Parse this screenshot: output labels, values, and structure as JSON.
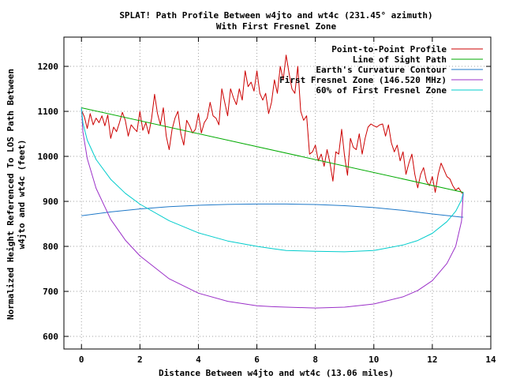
{
  "chart_data": {
    "type": "line",
    "title": "SPLAT! Path Profile Between w4jto and wt4c (231.45° azimuth)",
    "subtitle": "With First Fresnel Zone",
    "xlabel": "Distance Between w4jto and wt4c (13.06 miles)",
    "ylabel_line1": "Normalized Height Referenced To LOS Path Between",
    "ylabel_line2": "w4jto and wt4c (feet)",
    "xlim": [
      -0.6,
      14
    ],
    "ylim": [
      572,
      1265
    ],
    "xticks": [
      0,
      2,
      4,
      6,
      8,
      10,
      12,
      14
    ],
    "yticks": [
      600,
      700,
      800,
      900,
      1000,
      1100,
      1200
    ],
    "grid": true,
    "legend_position": "top-right",
    "series": [
      {
        "name": "Point-to-Point Profile",
        "color": "#cc0000",
        "x": [
          0,
          0.1,
          0.2,
          0.3,
          0.4,
          0.5,
          0.6,
          0.7,
          0.8,
          0.9,
          1.0,
          1.1,
          1.2,
          1.3,
          1.4,
          1.5,
          1.6,
          1.7,
          1.8,
          1.9,
          2.0,
          2.1,
          2.2,
          2.3,
          2.4,
          2.5,
          2.6,
          2.7,
          2.8,
          2.9,
          3.0,
          3.1,
          3.2,
          3.3,
          3.4,
          3.5,
          3.6,
          3.7,
          3.8,
          3.9,
          4.0,
          4.1,
          4.2,
          4.3,
          4.4,
          4.5,
          4.6,
          4.7,
          4.8,
          4.9,
          5.0,
          5.1,
          5.2,
          5.3,
          5.4,
          5.5,
          5.6,
          5.7,
          5.8,
          5.9,
          6.0,
          6.1,
          6.2,
          6.3,
          6.4,
          6.5,
          6.6,
          6.7,
          6.8,
          6.9,
          7.0,
          7.1,
          7.2,
          7.3,
          7.4,
          7.5,
          7.6,
          7.7,
          7.8,
          7.9,
          8.0,
          8.1,
          8.2,
          8.3,
          8.4,
          8.5,
          8.6,
          8.7,
          8.8,
          8.9,
          9.0,
          9.1,
          9.2,
          9.3,
          9.4,
          9.5,
          9.6,
          9.7,
          9.8,
          9.9,
          10.0,
          10.1,
          10.2,
          10.3,
          10.4,
          10.5,
          10.6,
          10.7,
          10.8,
          10.9,
          11.0,
          11.1,
          11.2,
          11.3,
          11.4,
          11.5,
          11.6,
          11.7,
          11.8,
          11.9,
          12.0,
          12.1,
          12.2,
          12.3,
          12.4,
          12.5,
          12.6,
          12.7,
          12.8,
          12.9,
          13.0,
          13.06
        ],
        "y": [
          1103,
          1088,
          1062,
          1095,
          1070,
          1085,
          1075,
          1090,
          1068,
          1092,
          1040,
          1065,
          1055,
          1075,
          1098,
          1080,
          1045,
          1070,
          1062,
          1055,
          1100,
          1058,
          1075,
          1050,
          1085,
          1138,
          1095,
          1070,
          1108,
          1045,
          1015,
          1060,
          1085,
          1100,
          1050,
          1025,
          1080,
          1068,
          1052,
          1060,
          1095,
          1052,
          1075,
          1085,
          1120,
          1090,
          1085,
          1070,
          1150,
          1120,
          1090,
          1150,
          1130,
          1115,
          1150,
          1125,
          1190,
          1155,
          1165,
          1145,
          1190,
          1140,
          1125,
          1140,
          1095,
          1120,
          1170,
          1140,
          1200,
          1170,
          1225,
          1185,
          1150,
          1140,
          1200,
          1100,
          1080,
          1090,
          1005,
          1010,
          1025,
          990,
          1005,
          978,
          1015,
          985,
          945,
          1010,
          1005,
          1060,
          1000,
          958,
          1040,
          1020,
          1015,
          1050,
          1005,
          1040,
          1065,
          1072,
          1068,
          1065,
          1070,
          1072,
          1045,
          1070,
          1030,
          1010,
          1025,
          990,
          1010,
          960,
          985,
          1005,
          960,
          930,
          960,
          975,
          945,
          935,
          955,
          920,
          960,
          985,
          970,
          955,
          950,
          935,
          925,
          930,
          920,
          915
        ]
      },
      {
        "name": "Line of Sight Path",
        "color": "#00aa00",
        "x": [
          0,
          13.06
        ],
        "y": [
          1108,
          920
        ]
      },
      {
        "name": "Earth's Curvature Contour",
        "color": "#1e78c8",
        "x": [
          0,
          1,
          2,
          3,
          4,
          5,
          6,
          6.53,
          7,
          8,
          9,
          10,
          11,
          12,
          13,
          13.06
        ],
        "y": [
          868,
          876.6,
          883.3,
          888.1,
          891.3,
          893.2,
          894.1,
          894.2,
          894.1,
          893.0,
          890.5,
          886.2,
          880.0,
          872.0,
          865.0,
          865
        ]
      },
      {
        "name": "First Fresnel Zone (146.520 MHz)",
        "color": "#9b30c8",
        "x": [
          0,
          0.05,
          0.2,
          0.5,
          1.0,
          1.5,
          2.0,
          3.0,
          4.0,
          5.0,
          6.0,
          6.53,
          7.0,
          8.0,
          9.0,
          10.0,
          11.0,
          11.5,
          12.0,
          12.5,
          12.8,
          13.0,
          13.06
        ],
        "y": [
          1108,
          1054,
          995,
          929,
          860,
          814,
          779,
          728,
          696,
          678,
          668,
          666,
          665,
          663,
          665,
          672,
          688,
          702,
          724,
          762,
          800,
          856,
          920
        ]
      },
      {
        "name": "60% of First Fresnel Zone",
        "color": "#00cccc",
        "x": [
          0,
          0.05,
          0.2,
          0.5,
          1.0,
          1.5,
          2.0,
          3.0,
          4.0,
          5.0,
          6.0,
          6.53,
          7.0,
          8.0,
          9.0,
          10.0,
          11.0,
          11.5,
          12.0,
          12.5,
          12.8,
          13.0,
          13.06
        ],
        "y": [
          1108,
          1074,
          1036,
          993,
          949,
          918,
          894,
          857,
          830,
          812,
          800,
          795,
          791,
          789,
          788,
          791,
          803,
          813,
          829,
          855,
          878,
          903,
          920
        ]
      }
    ]
  }
}
